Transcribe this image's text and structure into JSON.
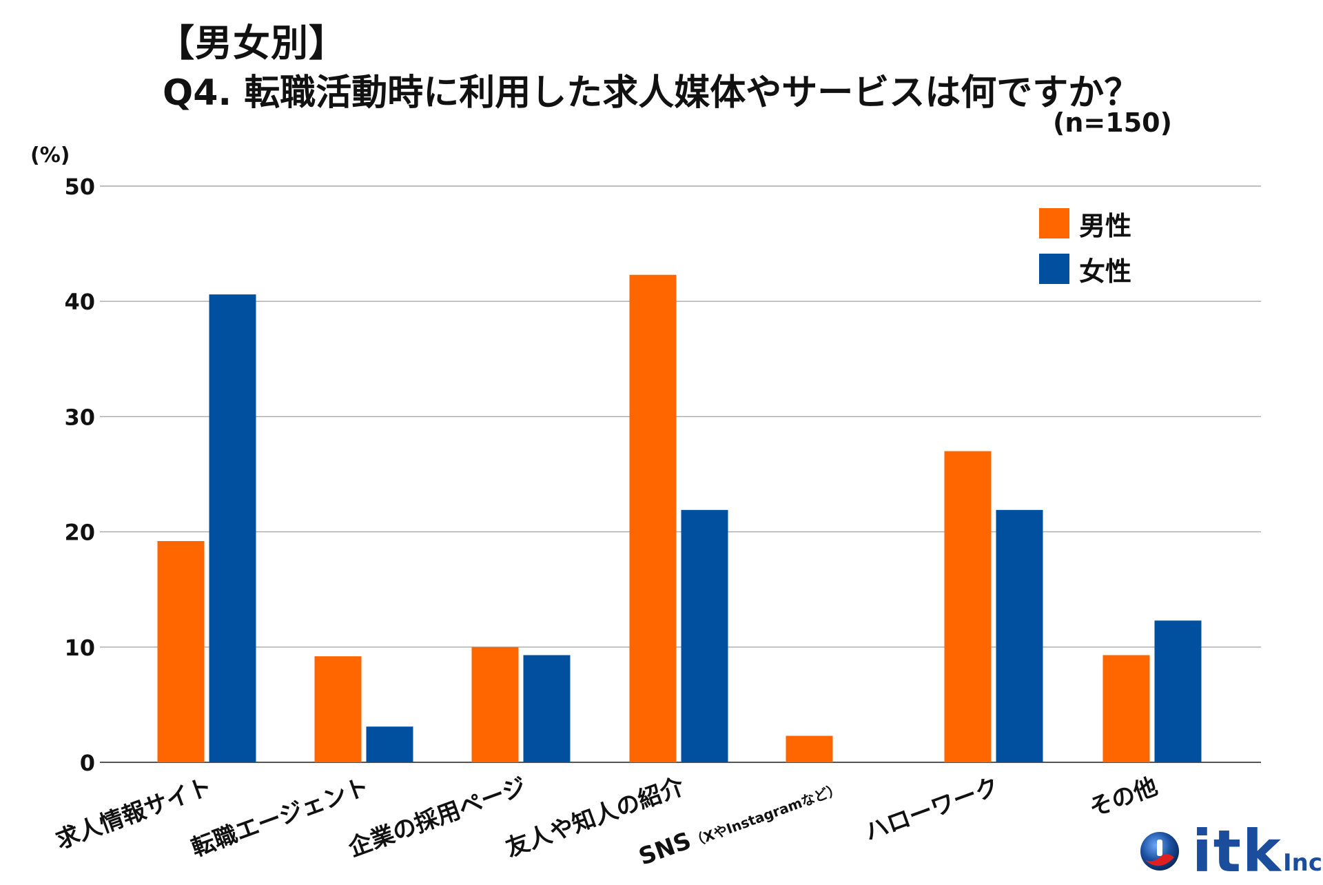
{
  "title": {
    "line1": "【男女別】",
    "line2": "Q4. 転職活動時に利用した求人媒体やサービスは何ですか？"
  },
  "sample": "(n=150)",
  "logo": {
    "text": "itk",
    "suffix": "Inc,"
  },
  "chart_data": {
    "type": "bar",
    "title": "Q4. 転職活動時に利用した求人媒体やサービスは何ですか？",
    "ylabel": "(%)",
    "ylim": [
      0,
      50
    ],
    "yticks": [
      0,
      10,
      20,
      30,
      40,
      50
    ],
    "grid": true,
    "legend_position": "top-right",
    "categories": [
      "求人情報サイト",
      "転職エージェント",
      "企業の採用ページ",
      "友人や知人の紹介",
      "SNS（XやInstagramなど）",
      "ハローワーク",
      "その他"
    ],
    "category_labels": [
      {
        "main": "求人情報サイト",
        "small": ""
      },
      {
        "main": "転職エージェント",
        "small": ""
      },
      {
        "main": "企業の採用ページ",
        "small": ""
      },
      {
        "main": "友人や知人の紹介",
        "small": ""
      },
      {
        "main": "SNS",
        "small": "（XやInstagramなど）"
      },
      {
        "main": "ハローワーク",
        "small": ""
      },
      {
        "main": "その他",
        "small": ""
      }
    ],
    "series": [
      {
        "name": "男性",
        "color": "#ff6600",
        "values": [
          19.2,
          9.2,
          10.0,
          42.3,
          2.3,
          27.0,
          9.3
        ]
      },
      {
        "name": "女性",
        "color": "#0050a0",
        "values": [
          40.6,
          3.1,
          9.3,
          21.9,
          0,
          21.9,
          12.3
        ]
      }
    ]
  }
}
